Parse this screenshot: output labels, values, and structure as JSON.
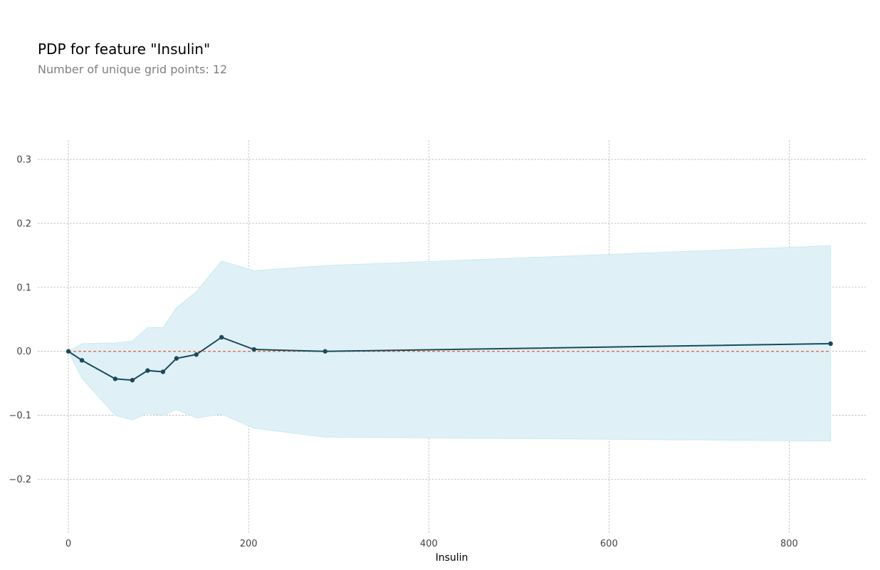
{
  "chart_data": {
    "type": "line",
    "title": "PDP for feature \"Insulin\"",
    "subtitle": "Number of unique grid points: 12",
    "xlabel": "Insulin",
    "ylabel": "",
    "xlim": [
      -34,
      885
    ],
    "ylim": [
      -0.285,
      0.33
    ],
    "x_ticks": [
      0,
      200,
      400,
      600,
      800
    ],
    "x_tick_labels": [
      "0",
      "200",
      "400",
      "600",
      "800"
    ],
    "y_ticks": [
      -0.2,
      -0.1,
      0.0,
      0.1,
      0.2,
      0.3
    ],
    "y_tick_labels": [
      "−0.2",
      "−0.1",
      "0.0",
      "0.1",
      "0.2",
      "0.3"
    ],
    "grid": true,
    "legend": "none",
    "x": [
      0,
      15,
      52,
      71,
      88,
      105,
      120,
      142,
      170,
      206,
      285,
      846
    ],
    "series": [
      {
        "values": [
          0.0,
          -0.014,
          -0.043,
          -0.045,
          -0.03,
          -0.032,
          -0.011,
          -0.005,
          0.022,
          0.003,
          0.0,
          0.012
        ],
        "color": "#1a4a5a"
      }
    ],
    "band_upper": [
      0.0,
      0.012,
      0.013,
      0.016,
      0.037,
      0.037,
      0.068,
      0.093,
      0.141,
      0.126,
      0.134,
      0.165
    ],
    "band_lower": [
      0.0,
      -0.042,
      -0.1,
      -0.107,
      -0.097,
      -0.1,
      -0.091,
      -0.104,
      -0.098,
      -0.12,
      -0.134,
      -0.14
    ],
    "band_color": "#dff1f7",
    "baseline": 0.0,
    "baseline_color": "#e05a3a",
    "grid_color": "#a8a8a8"
  }
}
